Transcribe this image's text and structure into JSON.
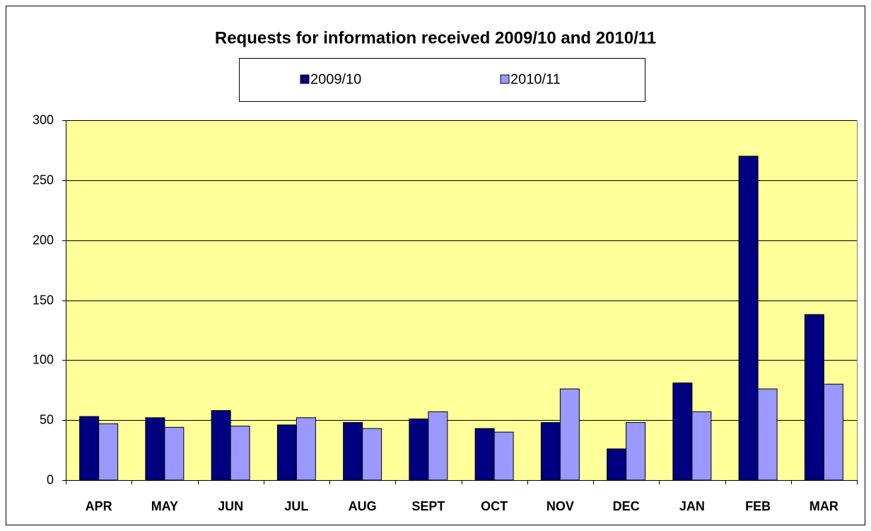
{
  "chart_data": {
    "type": "bar",
    "title": "Requests for information received 2009/10 and 2010/11",
    "categories": [
      "APR",
      "MAY",
      "JUN",
      "JUL",
      "AUG",
      "SEPT",
      "OCT",
      "NOV",
      "DEC",
      "JAN",
      "FEB",
      "MAR"
    ],
    "series": [
      {
        "name": "2009/10",
        "color": "#000080",
        "values": [
          53,
          52,
          58,
          46,
          48,
          51,
          43,
          48,
          26,
          81,
          270,
          138
        ]
      },
      {
        "name": "2010/11",
        "color": "#9999ff",
        "values": [
          47,
          44,
          45,
          52,
          43,
          57,
          40,
          76,
          48,
          57,
          76,
          80
        ]
      }
    ],
    "ylim": [
      0,
      300
    ],
    "yticks": [
      0,
      50,
      100,
      150,
      200,
      250,
      300
    ],
    "grid": true,
    "legend": "top"
  }
}
